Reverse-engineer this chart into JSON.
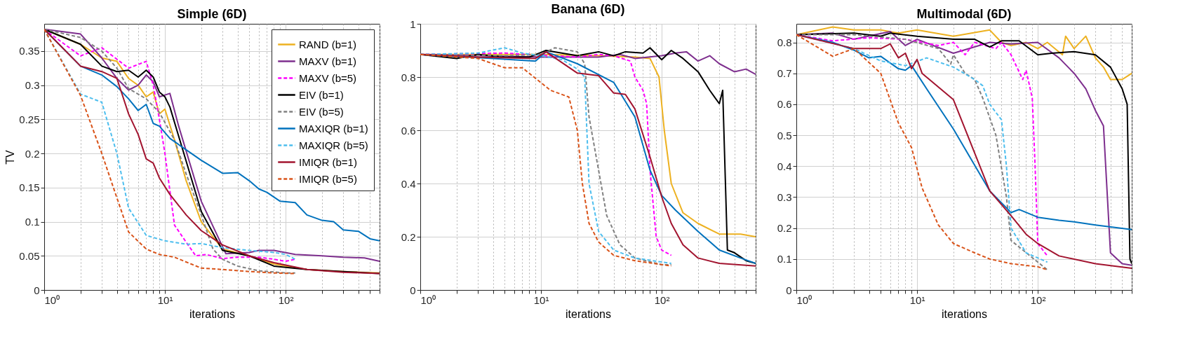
{
  "chart_data": [
    {
      "type": "line",
      "title": "Simple (6D)",
      "xlabel": "iterations",
      "ylabel": "TV",
      "log": "x",
      "grid": true,
      "legend": "top right",
      "xlim": [
        1,
        600
      ],
      "ylim": [
        0,
        0.39
      ],
      "yticks": [
        0,
        0.05,
        0.1,
        0.15,
        0.2,
        0.25,
        0.3,
        0.35
      ],
      "xticks": [
        {
          "value": 1,
          "label": "10⁰"
        },
        {
          "value": 2,
          "label": null
        },
        {
          "value": 3,
          "label": null
        },
        {
          "value": 4,
          "label": null
        },
        {
          "value": 5,
          "label": null
        },
        {
          "value": 6,
          "label": null
        },
        {
          "value": 7,
          "label": null
        },
        {
          "value": 8,
          "label": null
        },
        {
          "value": 9,
          "label": null
        },
        {
          "value": 10,
          "label": "10¹"
        },
        {
          "value": 20,
          "label": null
        },
        {
          "value": 30,
          "label": null
        },
        {
          "value": 40,
          "label": null
        },
        {
          "value": 50,
          "label": null
        },
        {
          "value": 60,
          "label": null
        },
        {
          "value": 70,
          "label": null
        },
        {
          "value": 80,
          "label": null
        },
        {
          "value": 90,
          "label": null
        },
        {
          "value": 100,
          "label": "10²"
        },
        {
          "value": 200,
          "label": null
        },
        {
          "value": 300,
          "label": null
        },
        {
          "value": 400,
          "label": null
        },
        {
          "value": 500,
          "label": null
        },
        {
          "value": 600,
          "label": null
        }
      ],
      "series": [
        {
          "name": "RAND (b=1)",
          "color": "#edb120",
          "line_style": "solid",
          "x": [
            1,
            2,
            3,
            4,
            5,
            6,
            7,
            8,
            9,
            10,
            12,
            15,
            20,
            30,
            50,
            80,
            150,
            300,
            600
          ],
          "values": [
            0.382,
            0.36,
            0.34,
            0.335,
            0.31,
            0.3,
            0.283,
            0.29,
            0.258,
            0.265,
            0.22,
            0.16,
            0.1,
            0.06,
            0.05,
            0.038,
            0.03,
            0.027,
            0.025
          ]
        },
        {
          "name": "MAXV (b=1)",
          "color": "#7e2f8e",
          "line_style": "solid",
          "x": [
            1,
            2,
            3,
            4,
            5,
            6,
            7,
            8,
            9,
            11,
            13,
            20,
            32,
            50,
            60,
            80,
            120,
            200,
            300,
            450,
            600
          ],
          "values": [
            0.382,
            0.375,
            0.34,
            0.31,
            0.293,
            0.3,
            0.315,
            0.305,
            0.283,
            0.288,
            0.24,
            0.13,
            0.053,
            0.055,
            0.058,
            0.058,
            0.052,
            0.05,
            0.048,
            0.047,
            0.042
          ]
        },
        {
          "name": "MAXV (b=5)",
          "color": "#ff00ff",
          "line_style": "dashed",
          "x": [
            1,
            2,
            3,
            5,
            7,
            8,
            9,
            10,
            12,
            15,
            18,
            22,
            30,
            40,
            60,
            80,
            100,
            120
          ],
          "values": [
            0.382,
            0.343,
            0.355,
            0.325,
            0.335,
            0.3,
            0.25,
            0.2,
            0.095,
            0.07,
            0.05,
            0.052,
            0.046,
            0.048,
            0.048,
            0.045,
            0.042,
            0.045
          ]
        },
        {
          "name": "EIV (b=1)",
          "color": "#000000",
          "line_style": "solid",
          "x": [
            1,
            2,
            3,
            4,
            5,
            6,
            7,
            8,
            9,
            10,
            11,
            20,
            30,
            50,
            80,
            150,
            300,
            600
          ],
          "values": [
            0.382,
            0.36,
            0.328,
            0.32,
            0.322,
            0.312,
            0.322,
            0.312,
            0.29,
            0.283,
            0.268,
            0.115,
            0.058,
            0.05,
            0.035,
            0.03,
            0.027,
            0.024
          ]
        },
        {
          "name": "EIV (b=5)",
          "color": "#808080",
          "line_style": "dashed",
          "x": [
            1,
            2,
            3,
            4,
            5,
            7,
            9,
            12,
            15,
            20,
            25,
            30,
            40,
            60,
            100,
            120
          ],
          "values": [
            0.382,
            0.37,
            0.35,
            0.325,
            0.295,
            0.28,
            0.26,
            0.22,
            0.17,
            0.11,
            0.06,
            0.045,
            0.035,
            0.028,
            0.025,
            0.025
          ]
        },
        {
          "name": "MAXIQR (b=1)",
          "color": "#0072bd",
          "line_style": "solid",
          "x": [
            1,
            2,
            3,
            4,
            5,
            6,
            7,
            8,
            9,
            11,
            20,
            30,
            40,
            50,
            60,
            70,
            90,
            120,
            150,
            200,
            250,
            300,
            400,
            500,
            600
          ],
          "values": [
            0.382,
            0.328,
            0.315,
            0.298,
            0.28,
            0.263,
            0.272,
            0.244,
            0.24,
            0.222,
            0.19,
            0.171,
            0.172,
            0.16,
            0.148,
            0.143,
            0.13,
            0.128,
            0.11,
            0.102,
            0.1,
            0.088,
            0.086,
            0.075,
            0.072
          ]
        },
        {
          "name": "MAXIQR (b=5)",
          "color": "#4dbeee",
          "line_style": "dashed",
          "x": [
            1,
            2,
            3,
            4,
            5,
            7,
            10,
            15,
            20,
            30,
            50,
            80,
            100,
            120
          ],
          "values": [
            0.382,
            0.287,
            0.275,
            0.2,
            0.12,
            0.08,
            0.072,
            0.067,
            0.068,
            0.062,
            0.058,
            0.055,
            0.052,
            0.045
          ]
        },
        {
          "name": "IMIQR (b=1)",
          "color": "#a2142f",
          "line_style": "solid",
          "x": [
            1,
            2,
            3,
            4,
            5,
            6,
            7,
            8,
            9,
            11,
            15,
            20,
            30,
            50,
            80,
            150,
            300,
            600
          ],
          "values": [
            0.382,
            0.328,
            0.32,
            0.31,
            0.258,
            0.228,
            0.192,
            0.186,
            0.164,
            0.14,
            0.11,
            0.087,
            0.066,
            0.05,
            0.04,
            0.03,
            0.026,
            0.024
          ]
        },
        {
          "name": "IMIQR (b=5)",
          "color": "#d95319",
          "line_style": "dashed",
          "x": [
            1,
            2,
            3,
            4,
            5,
            7,
            9,
            12,
            20,
            30,
            50,
            80,
            120
          ],
          "values": [
            0.382,
            0.285,
            0.2,
            0.135,
            0.085,
            0.06,
            0.052,
            0.048,
            0.032,
            0.03,
            0.027,
            0.025,
            0.024
          ]
        }
      ]
    },
    {
      "type": "line",
      "title": "Banana (6D)",
      "xlabel": "iterations",
      "log": "x",
      "grid": true,
      "xlim": [
        1,
        600
      ],
      "ylim": [
        0,
        1
      ],
      "yticks": [
        0,
        0.2,
        0.4,
        0.6,
        0.8,
        1
      ],
      "xticks": [
        {
          "value": 1,
          "label": "10⁰"
        },
        {
          "value": 2,
          "label": null
        },
        {
          "value": 3,
          "label": null
        },
        {
          "value": 4,
          "label": null
        },
        {
          "value": 5,
          "label": null
        },
        {
          "value": 6,
          "label": null
        },
        {
          "value": 7,
          "label": null
        },
        {
          "value": 8,
          "label": null
        },
        {
          "value": 9,
          "label": null
        },
        {
          "value": 10,
          "label": "10¹"
        },
        {
          "value": 20,
          "label": null
        },
        {
          "value": 30,
          "label": null
        },
        {
          "value": 40,
          "label": null
        },
        {
          "value": 50,
          "label": null
        },
        {
          "value": 60,
          "label": null
        },
        {
          "value": 70,
          "label": null
        },
        {
          "value": 80,
          "label": null
        },
        {
          "value": 90,
          "label": null
        },
        {
          "value": 100,
          "label": "10²"
        },
        {
          "value": 200,
          "label": null
        },
        {
          "value": 300,
          "label": null
        },
        {
          "value": 400,
          "label": null
        },
        {
          "value": 500,
          "label": null
        },
        {
          "value": 600,
          "label": null
        }
      ],
      "series": [
        {
          "color": "#edb120",
          "line_style": "solid",
          "x": [
            1,
            10,
            30,
            60,
            80,
            95,
            105,
            120,
            150,
            200,
            300,
            450,
            600
          ],
          "values": [
            0.885,
            0.885,
            0.88,
            0.875,
            0.87,
            0.8,
            0.6,
            0.4,
            0.29,
            0.25,
            0.21,
            0.21,
            0.2
          ]
        },
        {
          "color": "#7e2f8e",
          "line_style": "solid",
          "x": [
            1,
            10,
            30,
            45,
            60,
            100,
            130,
            160,
            200,
            250,
            300,
            400,
            500,
            600
          ],
          "values": [
            0.885,
            0.875,
            0.875,
            0.885,
            0.87,
            0.88,
            0.89,
            0.895,
            0.86,
            0.88,
            0.85,
            0.82,
            0.83,
            0.81
          ]
        },
        {
          "color": "#ff00ff",
          "line_style": "dashed",
          "x": [
            1,
            5,
            20,
            30,
            40,
            55,
            60,
            70,
            75,
            80,
            90,
            100,
            120
          ],
          "values": [
            0.885,
            0.89,
            0.875,
            0.885,
            0.88,
            0.86,
            0.8,
            0.75,
            0.7,
            0.45,
            0.2,
            0.15,
            0.13
          ]
        },
        {
          "color": "#000000",
          "line_style": "solid",
          "x": [
            1,
            2,
            3,
            5,
            8,
            11,
            20,
            30,
            40,
            50,
            70,
            80,
            100,
            120,
            150,
            200,
            250,
            300,
            320,
            350,
            400,
            500,
            600
          ],
          "values": [
            0.885,
            0.87,
            0.885,
            0.875,
            0.875,
            0.9,
            0.88,
            0.895,
            0.88,
            0.895,
            0.89,
            0.91,
            0.865,
            0.9,
            0.87,
            0.82,
            0.75,
            0.7,
            0.75,
            0.15,
            0.14,
            0.11,
            0.1
          ]
        },
        {
          "color": "#808080",
          "line_style": "dashed",
          "x": [
            1,
            5,
            10,
            13,
            20,
            23,
            25,
            30,
            35,
            45,
            60,
            100,
            120
          ],
          "values": [
            0.885,
            0.88,
            0.885,
            0.91,
            0.895,
            0.85,
            0.65,
            0.45,
            0.28,
            0.17,
            0.12,
            0.095,
            0.095
          ]
        },
        {
          "color": "#0072bd",
          "line_style": "solid",
          "x": [
            1,
            4,
            9,
            11,
            20,
            40,
            60,
            80,
            100,
            130,
            200,
            300,
            450,
            600
          ],
          "values": [
            0.885,
            0.87,
            0.86,
            0.895,
            0.85,
            0.78,
            0.65,
            0.45,
            0.355,
            0.3,
            0.22,
            0.15,
            0.12,
            0.1
          ]
        },
        {
          "color": "#4dbeee",
          "line_style": "dashed",
          "x": [
            1,
            3,
            5,
            7,
            10,
            15,
            20,
            23,
            25,
            30,
            40,
            60,
            100,
            120
          ],
          "values": [
            0.885,
            0.89,
            0.91,
            0.89,
            0.88,
            0.865,
            0.83,
            0.8,
            0.4,
            0.22,
            0.15,
            0.12,
            0.105,
            0.1
          ]
        },
        {
          "color": "#a2142f",
          "line_style": "solid",
          "x": [
            1,
            3,
            9,
            11,
            20,
            30,
            40,
            50,
            60,
            80,
            100,
            120,
            150,
            200,
            300,
            600
          ],
          "values": [
            0.885,
            0.875,
            0.87,
            0.895,
            0.815,
            0.805,
            0.74,
            0.735,
            0.68,
            0.5,
            0.35,
            0.25,
            0.17,
            0.12,
            0.1,
            0.09
          ]
        },
        {
          "color": "#d95319",
          "line_style": "dashed",
          "x": [
            1,
            3,
            4,
            5,
            7,
            12,
            17,
            20,
            22,
            25,
            30,
            40,
            60,
            120
          ],
          "values": [
            0.885,
            0.87,
            0.85,
            0.835,
            0.835,
            0.75,
            0.725,
            0.6,
            0.4,
            0.25,
            0.18,
            0.13,
            0.11,
            0.09
          ]
        }
      ]
    },
    {
      "type": "line",
      "title": "Multimodal (6D)",
      "xlabel": "iterations",
      "log": "x",
      "grid": true,
      "xlim": [
        1,
        600
      ],
      "ylim": [
        0,
        0.86
      ],
      "yticks": [
        0,
        0.1,
        0.2,
        0.3,
        0.4,
        0.5,
        0.6,
        0.7,
        0.8
      ],
      "xticks": [
        {
          "value": 1,
          "label": "10⁰"
        },
        {
          "value": 2,
          "label": null
        },
        {
          "value": 3,
          "label": null
        },
        {
          "value": 4,
          "label": null
        },
        {
          "value": 5,
          "label": null
        },
        {
          "value": 6,
          "label": null
        },
        {
          "value": 7,
          "label": null
        },
        {
          "value": 8,
          "label": null
        },
        {
          "value": 9,
          "label": null
        },
        {
          "value": 10,
          "label": "10¹"
        },
        {
          "value": 20,
          "label": null
        },
        {
          "value": 30,
          "label": null
        },
        {
          "value": 40,
          "label": null
        },
        {
          "value": 50,
          "label": null
        },
        {
          "value": 60,
          "label": null
        },
        {
          "value": 70,
          "label": null
        },
        {
          "value": 80,
          "label": null
        },
        {
          "value": 90,
          "label": null
        },
        {
          "value": 100,
          "label": "10²"
        },
        {
          "value": 200,
          "label": null
        },
        {
          "value": 300,
          "label": null
        },
        {
          "value": 400,
          "label": null
        },
        {
          "value": 500,
          "label": null
        },
        {
          "value": 600,
          "label": null
        }
      ],
      "series": [
        {
          "color": "#edb120",
          "line_style": "solid",
          "x": [
            1,
            2,
            3,
            5,
            7,
            10,
            20,
            40,
            50,
            60,
            80,
            100,
            120,
            160,
            170,
            200,
            250,
            300,
            350,
            400,
            500,
            600
          ],
          "values": [
            0.825,
            0.85,
            0.84,
            0.84,
            0.83,
            0.84,
            0.82,
            0.84,
            0.8,
            0.79,
            0.8,
            0.78,
            0.8,
            0.76,
            0.82,
            0.78,
            0.82,
            0.75,
            0.72,
            0.68,
            0.68,
            0.7
          ]
        },
        {
          "color": "#7e2f8e",
          "line_style": "solid",
          "x": [
            1,
            2,
            3,
            6,
            8,
            10,
            20,
            40,
            60,
            100,
            150,
            200,
            250,
            300,
            350,
            400,
            500,
            600
          ],
          "values": [
            0.825,
            0.83,
            0.81,
            0.835,
            0.79,
            0.81,
            0.765,
            0.8,
            0.795,
            0.8,
            0.75,
            0.7,
            0.65,
            0.58,
            0.53,
            0.12,
            0.085,
            0.08
          ]
        },
        {
          "color": "#ff00ff",
          "line_style": "dashed",
          "x": [
            1,
            2,
            4,
            8,
            15,
            20,
            25,
            30,
            45,
            50,
            60,
            75,
            80,
            90,
            95,
            100,
            120
          ],
          "values": [
            0.825,
            0.805,
            0.815,
            0.81,
            0.79,
            0.8,
            0.76,
            0.8,
            0.78,
            0.8,
            0.76,
            0.68,
            0.71,
            0.62,
            0.4,
            0.15,
            0.11
          ]
        },
        {
          "color": "#000000",
          "line_style": "solid",
          "x": [
            1,
            3,
            5,
            6,
            10,
            20,
            30,
            40,
            50,
            70,
            100,
            130,
            200,
            300,
            400,
            500,
            550,
            580,
            600
          ],
          "values": [
            0.825,
            0.83,
            0.82,
            0.83,
            0.82,
            0.81,
            0.81,
            0.785,
            0.805,
            0.805,
            0.76,
            0.765,
            0.77,
            0.76,
            0.72,
            0.65,
            0.6,
            0.1,
            0.085
          ]
        },
        {
          "color": "#808080",
          "line_style": "dashed",
          "x": [
            1,
            3,
            8,
            15,
            19,
            20,
            25,
            30,
            35,
            45,
            55,
            60,
            100,
            120
          ],
          "values": [
            0.825,
            0.825,
            0.81,
            0.78,
            0.73,
            0.76,
            0.7,
            0.68,
            0.62,
            0.5,
            0.3,
            0.16,
            0.09,
            0.065
          ]
        },
        {
          "color": "#0072bd",
          "line_style": "solid",
          "x": [
            1,
            2,
            3,
            4,
            5,
            7,
            8,
            9,
            12,
            20,
            40,
            60,
            70,
            100,
            150,
            200,
            300,
            600
          ],
          "values": [
            0.825,
            0.8,
            0.775,
            0.75,
            0.755,
            0.715,
            0.71,
            0.725,
            0.65,
            0.52,
            0.32,
            0.25,
            0.26,
            0.235,
            0.225,
            0.22,
            0.21,
            0.195
          ]
        },
        {
          "color": "#4dbeee",
          "line_style": "dashed",
          "x": [
            1,
            3,
            5,
            8,
            12,
            20,
            30,
            35,
            40,
            50,
            55,
            60,
            80,
            120
          ],
          "values": [
            0.825,
            0.78,
            0.74,
            0.725,
            0.75,
            0.72,
            0.68,
            0.66,
            0.6,
            0.55,
            0.4,
            0.2,
            0.12,
            0.09
          ]
        },
        {
          "color": "#a2142f",
          "line_style": "solid",
          "x": [
            1,
            3,
            5,
            6,
            7,
            8,
            9,
            10,
            11,
            20,
            40,
            60,
            80,
            100,
            150,
            300,
            600
          ],
          "values": [
            0.825,
            0.78,
            0.78,
            0.795,
            0.75,
            0.765,
            0.715,
            0.745,
            0.7,
            0.615,
            0.32,
            0.24,
            0.18,
            0.15,
            0.11,
            0.085,
            0.07
          ]
        },
        {
          "color": "#d95319",
          "line_style": "dashed",
          "x": [
            1,
            2,
            3,
            5,
            7,
            9,
            11,
            15,
            20,
            30,
            40,
            60,
            100,
            120
          ],
          "values": [
            0.825,
            0.755,
            0.78,
            0.7,
            0.54,
            0.46,
            0.33,
            0.21,
            0.15,
            0.12,
            0.1,
            0.085,
            0.075,
            0.065
          ]
        }
      ]
    }
  ]
}
